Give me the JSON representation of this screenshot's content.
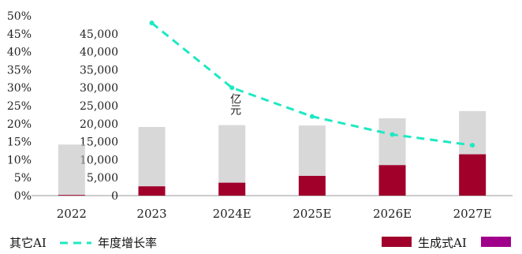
{
  "chart_data": {
    "type": "bar",
    "categories": [
      "2022",
      "2023",
      "2024E",
      "2025E",
      "2026E",
      "2027E"
    ],
    "series": [
      {
        "name": "生成式AI",
        "type": "bar",
        "color": "#a0002a",
        "values": [
          200,
          2600,
          3600,
          5500,
          8500,
          11500
        ]
      },
      {
        "name": "其它AI",
        "type": "bar",
        "color": "#b8b8b8",
        "values": [
          14000,
          16500,
          16000,
          14000,
          13000,
          12000
        ]
      },
      {
        "name": "年度增长率",
        "type": "line",
        "color": "#1de9c2",
        "axis": "right",
        "values": [
          null,
          48,
          30,
          22,
          17,
          14
        ]
      }
    ],
    "ylabel": "亿元",
    "ylim": [
      0,
      50000
    ],
    "y_ticks": [
      0,
      5000,
      10000,
      15000,
      20000,
      25000,
      30000,
      35000,
      40000,
      45000
    ],
    "y2lim": [
      0,
      50
    ],
    "y2_ticks": [
      0,
      5,
      10,
      15,
      20,
      25,
      30,
      35,
      40,
      45,
      50
    ],
    "legend_position": "bottom",
    "grid": false
  },
  "legend": {
    "other_ai": "其它AI",
    "growth": "年度增长率",
    "genai": "生成式AI"
  }
}
